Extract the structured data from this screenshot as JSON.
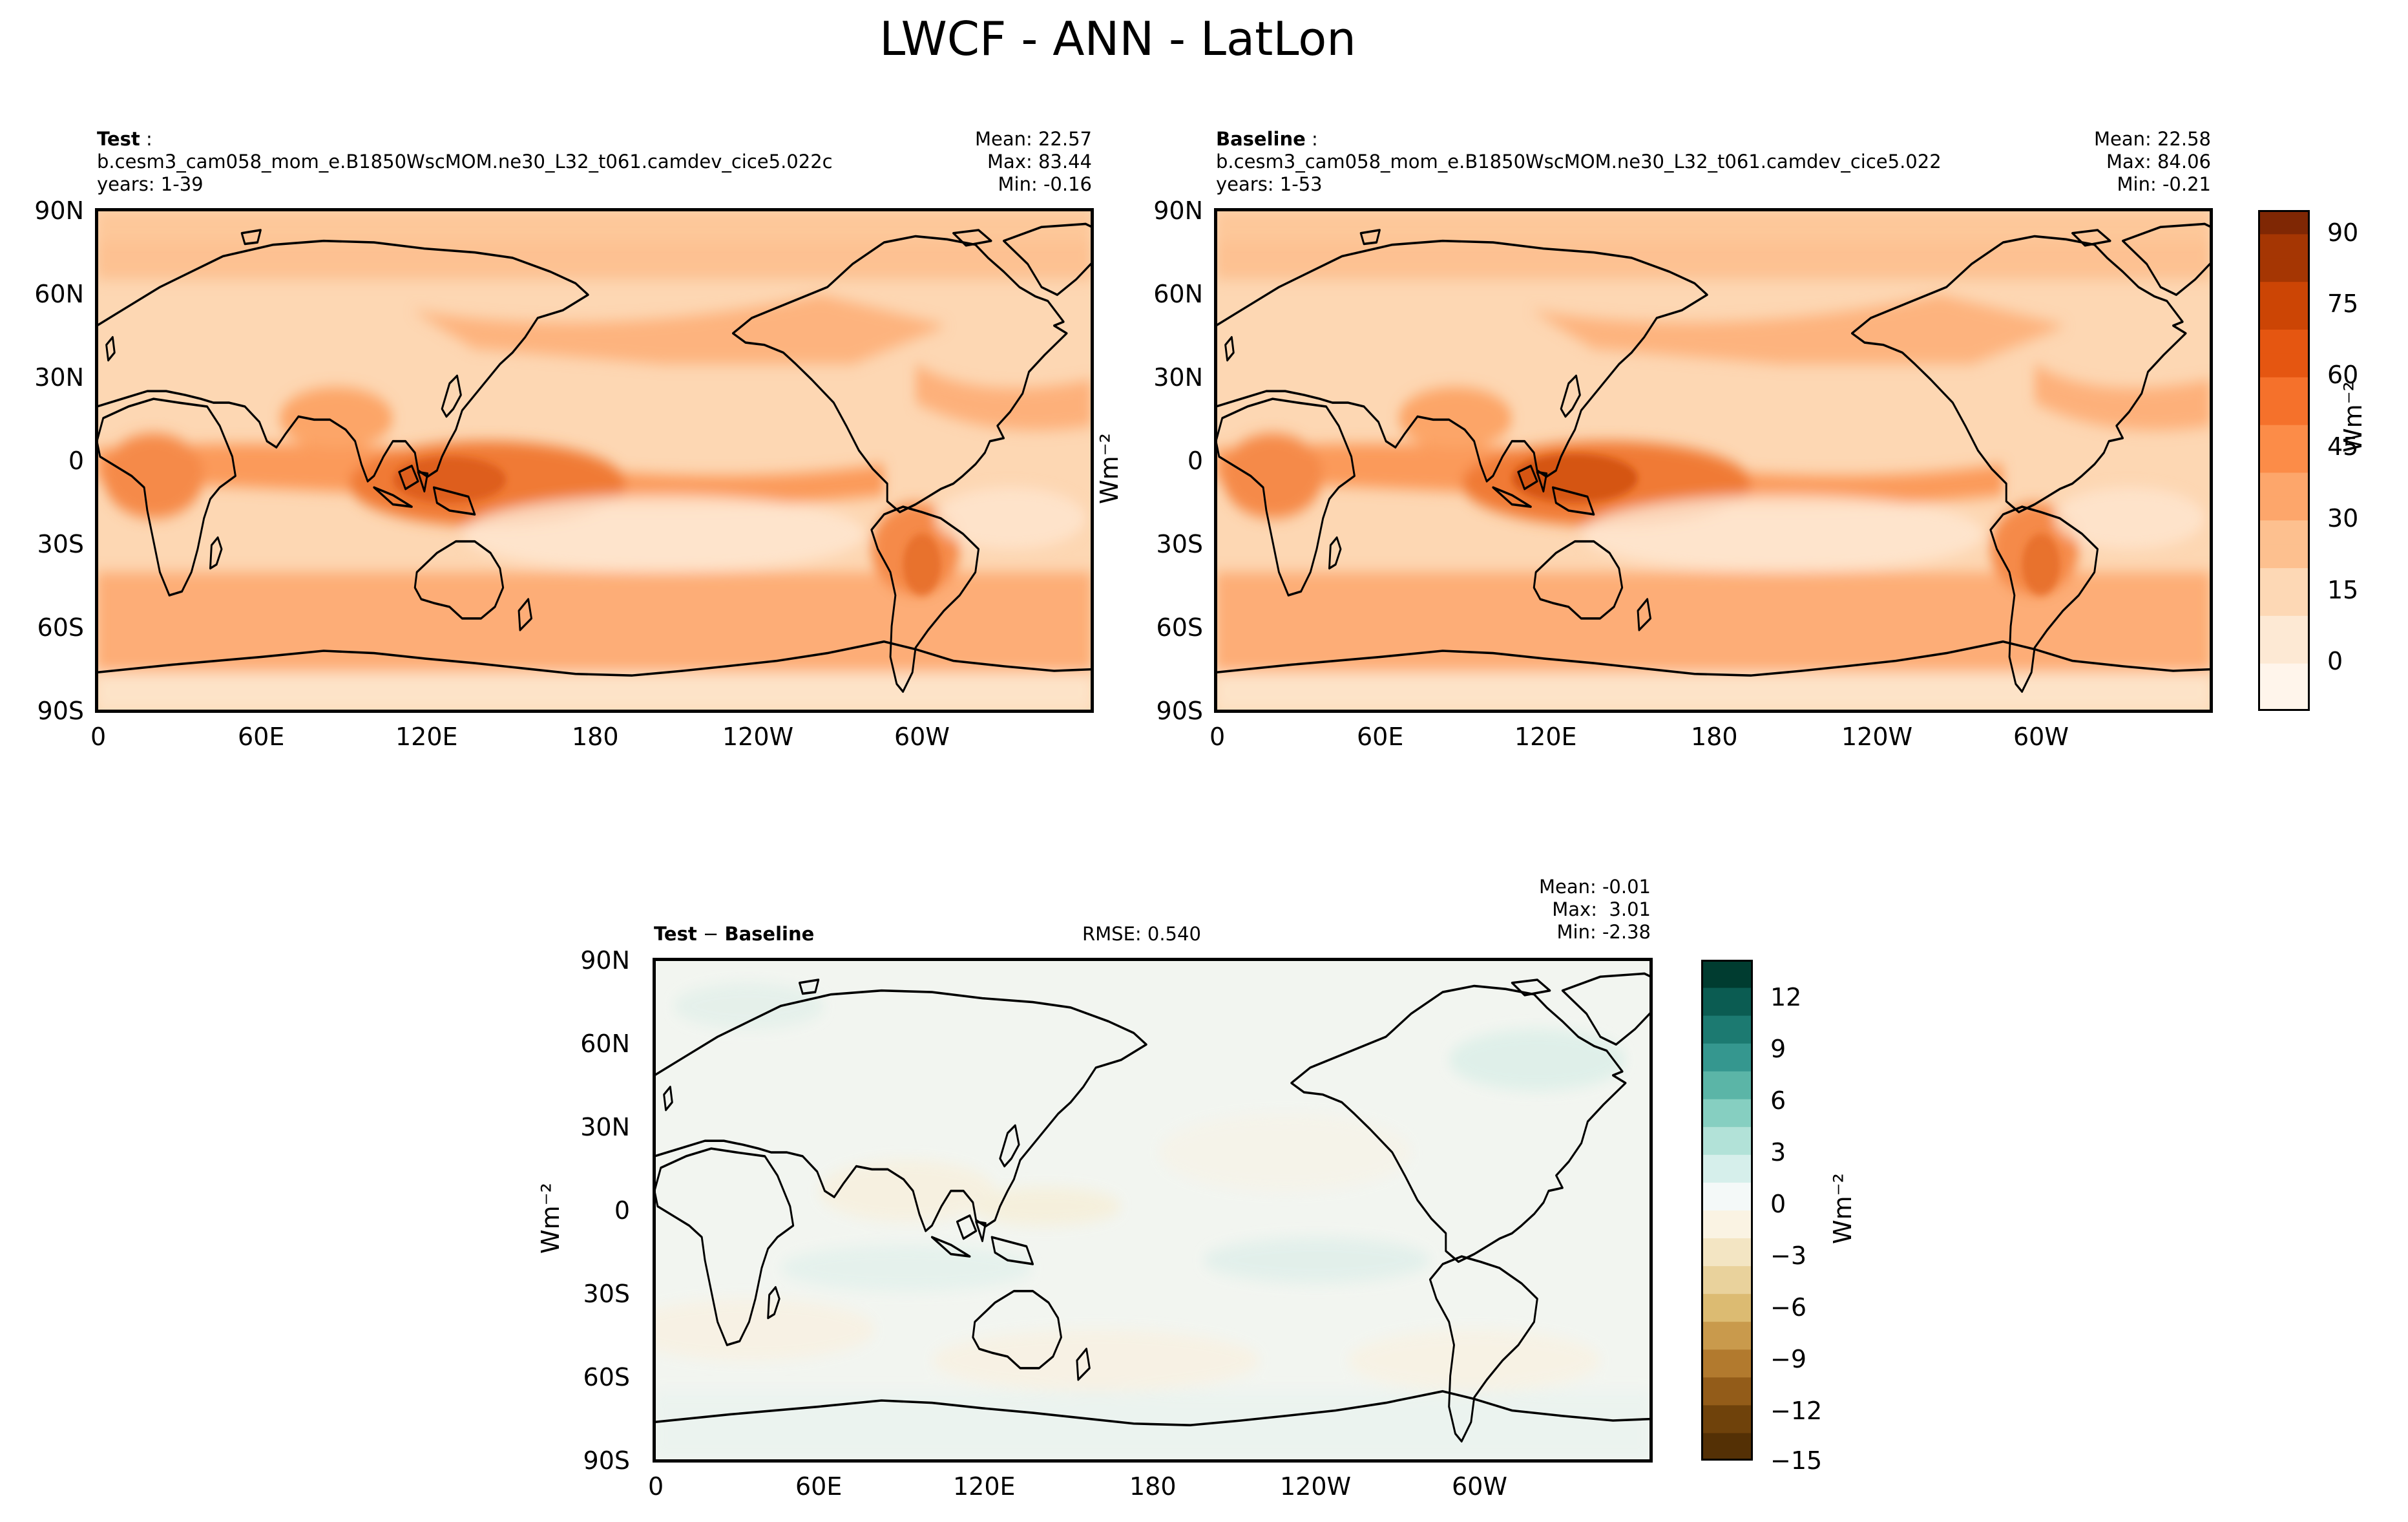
{
  "suptitle": "LWCF - ANN - LatLon",
  "panels": {
    "test": {
      "label": "Test",
      "case": "b.cesm3_cam058_mom_e.B1850WscMOM.ne30_L32_t061.camdev_cice5.022c",
      "years": "years: 1-39",
      "mean": "Mean: 22.57",
      "max": "Max: 83.44",
      "min": "Min: -0.16"
    },
    "baseline": {
      "label": "Baseline",
      "case": "b.cesm3_cam058_mom_e.B1850WscMOM.ne30_L32_t061.camdev_cice5.022",
      "years": "years: 1-53",
      "mean": "Mean: 22.58",
      "max": "Max: 84.06",
      "min": "Min: -0.21"
    },
    "diff": {
      "label_a": "Test",
      "label_sep": " − ",
      "label_b": "Baseline",
      "rmse": "RMSE: 0.540",
      "mean": "Mean: -0.01",
      "max": "Max:  3.01",
      "min": "Min: -2.38"
    }
  },
  "axes": {
    "lat_ticks": [
      "90N",
      "60N",
      "30N",
      "0",
      "30S",
      "60S",
      "90S"
    ],
    "lon_ticks": [
      "0",
      "60E",
      "120E",
      "180",
      "120W",
      "60W"
    ]
  },
  "colorbars": {
    "main": {
      "label": "Wm⁻²",
      "ticks": [
        "90",
        "75",
        "60",
        "45",
        "30",
        "15",
        "0"
      ],
      "range": [
        -10,
        95
      ],
      "colors": [
        "#fff5eb",
        "#fde9d4",
        "#fdd8b5",
        "#fdc08f",
        "#fda66b",
        "#fc8c48",
        "#f5712b",
        "#e55611",
        "#cc4505",
        "#a53603",
        "#7f2704"
      ]
    },
    "diff": {
      "label": "Wm⁻²",
      "ticks": [
        "12",
        "9",
        "6",
        "3",
        "0",
        "−3",
        "−6",
        "−9",
        "−12",
        "−15"
      ],
      "range": [
        -15,
        14
      ],
      "colors_pos": [
        "#f4f9f8",
        "#d6efeb",
        "#b2e2d8",
        "#86cfc1",
        "#5bb5a7",
        "#35978f",
        "#1c7a71",
        "#0b5c52",
        "#003c30"
      ],
      "colors_neg": [
        "#faf3e3",
        "#f3e5c3",
        "#e9d29c",
        "#dcbb72",
        "#c99a4c",
        "#b27a2e",
        "#935c19",
        "#6f420b",
        "#543005"
      ]
    }
  },
  "chart_data": [
    {
      "type": "heatmap",
      "title": "Test",
      "variable": "LWCF",
      "units": "Wm⁻²",
      "season": "ANN",
      "stats": {
        "mean": 22.57,
        "max": 83.44,
        "min": -0.16
      },
      "x": "longitude",
      "y": "latitude",
      "xlim": [
        0,
        360
      ],
      "ylim": [
        -90,
        90
      ],
      "colorbar_range": [
        -10,
        95
      ]
    },
    {
      "type": "heatmap",
      "title": "Baseline",
      "variable": "LWCF",
      "units": "Wm⁻²",
      "season": "ANN",
      "stats": {
        "mean": 22.58,
        "max": 84.06,
        "min": -0.21
      },
      "x": "longitude",
      "y": "latitude",
      "xlim": [
        0,
        360
      ],
      "ylim": [
        -90,
        90
      ],
      "colorbar_range": [
        -10,
        95
      ]
    },
    {
      "type": "heatmap",
      "title": "Test − Baseline",
      "variable": "LWCF",
      "units": "Wm⁻²",
      "stats": {
        "mean": -0.01,
        "max": 3.01,
        "min": -2.38,
        "rmse": 0.54
      },
      "x": "longitude",
      "y": "latitude",
      "xlim": [
        0,
        360
      ],
      "ylim": [
        -90,
        90
      ],
      "colorbar_range": [
        -15,
        14
      ]
    }
  ]
}
